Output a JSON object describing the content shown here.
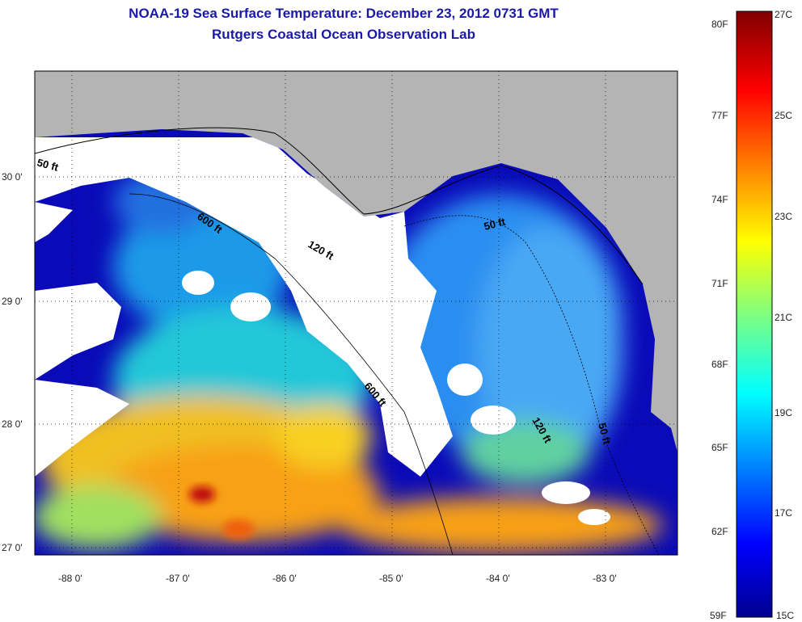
{
  "title": "NOAA-19 Sea Surface Temperature:  December 23, 2012 0731 GMT",
  "subtitle": "Rutgers Coastal Ocean Observation Lab",
  "map": {
    "lon_ticks": [
      -88,
      -87,
      -86,
      -85,
      -84,
      -83
    ],
    "lon_labels": [
      "-88 0'",
      "-87 0'",
      "-86 0'",
      "-85 0'",
      "-84 0'",
      "-83 0'"
    ],
    "lat_ticks": [
      30,
      29,
      28,
      27
    ],
    "lat_labels": [
      "30 0'",
      "29 0'",
      "28 0'",
      "27 0'"
    ],
    "lon_range": [
      -88.35,
      -82.33
    ],
    "lat_range": [
      26.94,
      30.85
    ],
    "contour_labels": [
      "50 ft",
      "600 ft",
      "120 ft",
      "50 ft",
      "600 ft",
      "120 ft",
      "50 ft"
    ],
    "colors": {
      "land": "#b4b4b4",
      "cloud": "#ffffff",
      "deep": "#00009a"
    }
  },
  "colorbar": {
    "fahrenheit_labels": [
      "80F",
      "77F",
      "74F",
      "71F",
      "68F",
      "65F",
      "62F",
      "59F"
    ],
    "celsius_labels": [
      "27C",
      "25C",
      "23C",
      "21C",
      "19C",
      "17C",
      "15C"
    ],
    "range_c": [
      15,
      27
    ]
  }
}
